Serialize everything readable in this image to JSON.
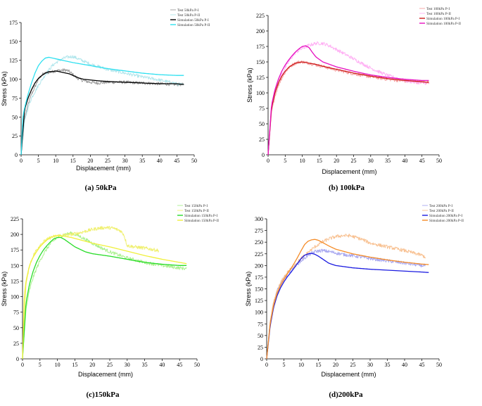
{
  "chart_data": [
    {
      "type": "line",
      "caption": "(a) 50kPa",
      "xlabel": "Displacement (mm)",
      "ylabel": "Stress (kPa)",
      "xlim": [
        0,
        50
      ],
      "ylim": [
        0,
        175
      ],
      "xticks": [
        0,
        5,
        10,
        15,
        20,
        25,
        30,
        35,
        40,
        45,
        50
      ],
      "yticks": [
        0,
        25,
        50,
        75,
        100,
        125,
        150,
        175
      ],
      "legend": "top-right",
      "series": [
        {
          "name": "Test 50kPa P-I",
          "color": "#9a9a9a",
          "style": "noisy",
          "width": 1,
          "x": [
            0,
            1,
            2,
            3,
            4,
            5,
            6,
            7,
            8,
            10,
            12,
            13,
            14,
            15,
            16,
            18,
            20,
            22,
            25,
            30,
            35,
            40,
            45,
            47
          ],
          "y": [
            0,
            48,
            66,
            80,
            90,
            100,
            106,
            108,
            109,
            111,
            112,
            112,
            110,
            106,
            102,
            98,
            96,
            95,
            96,
            96,
            95,
            94,
            93,
            93
          ]
        },
        {
          "name": "Test 50kPa P-II",
          "color": "#b0e6ec",
          "style": "noisy",
          "width": 1,
          "x": [
            0,
            1,
            2,
            3,
            5,
            7,
            9,
            11,
            13,
            15,
            17,
            20,
            25,
            30,
            35,
            40,
            45,
            47
          ],
          "y": [
            0,
            45,
            62,
            75,
            92,
            106,
            118,
            125,
            129,
            130,
            126,
            120,
            113,
            108,
            103,
            99,
            94,
            92
          ]
        },
        {
          "name": "Simulation 50kPa P-I",
          "color": "#000000",
          "style": "solid",
          "width": 1.3,
          "x": [
            0,
            1,
            2,
            3,
            4,
            5,
            6,
            7,
            8,
            9,
            10,
            11,
            12,
            13,
            14,
            15,
            16,
            17,
            18,
            20,
            22,
            25,
            30,
            35,
            40,
            45,
            47
          ],
          "y": [
            0,
            60,
            75,
            86,
            95,
            101,
            105,
            108,
            110,
            110,
            111,
            110,
            109,
            108,
            107,
            105,
            103,
            101,
            100,
            99,
            98,
            97,
            96,
            95,
            94,
            94,
            93
          ]
        },
        {
          "name": "Simulation 50kPa P-II",
          "color": "#2fe0f0",
          "style": "solid",
          "width": 1.3,
          "x": [
            0,
            0.5,
            1,
            2,
            3,
            4,
            5,
            6,
            7,
            8,
            9,
            10,
            12,
            15,
            20,
            25,
            30,
            35,
            40,
            45,
            47
          ],
          "y": [
            0,
            50,
            62,
            80,
            95,
            108,
            118,
            124,
            128,
            129,
            128,
            127,
            125,
            122,
            118,
            114,
            111,
            108,
            106,
            105,
            105
          ]
        }
      ]
    },
    {
      "type": "line",
      "caption": "(b) 100kPa",
      "xlabel": "Displacement (mm)",
      "ylabel": "Stress (kPa)",
      "xlim": [
        0,
        50
      ],
      "ylim": [
        0,
        225
      ],
      "xticks": [
        0,
        5,
        10,
        15,
        20,
        25,
        30,
        35,
        40,
        45,
        50
      ],
      "yticks": [
        0,
        25,
        50,
        75,
        100,
        125,
        150,
        175,
        200,
        225
      ],
      "legend": "top-right",
      "series": [
        {
          "name": "Test 100kPa P-I",
          "color": "#f4a0a0",
          "style": "noisy",
          "width": 1,
          "x": [
            0,
            1,
            2,
            3,
            4,
            5,
            6,
            7,
            8,
            9,
            10,
            11,
            12,
            15,
            20,
            25,
            30,
            35,
            40,
            45,
            47
          ],
          "y": [
            0,
            70,
            95,
            112,
            124,
            133,
            140,
            145,
            148,
            150,
            150,
            149,
            148,
            144,
            137,
            131,
            126,
            122,
            119,
            117,
            117
          ]
        },
        {
          "name": "Test 100kPa P-II",
          "color": "#ffb0f4",
          "style": "noisy",
          "width": 1,
          "x": [
            0,
            1,
            2,
            3,
            4,
            5,
            6,
            7,
            8,
            10,
            12,
            14,
            16,
            18,
            20,
            25,
            30,
            35,
            40,
            42,
            45,
            47
          ],
          "y": [
            0,
            75,
            100,
            118,
            130,
            140,
            150,
            158,
            165,
            172,
            177,
            180,
            180,
            176,
            170,
            155,
            140,
            128,
            120,
            118,
            116,
            116
          ]
        },
        {
          "name": "Simulation 100kPa P-I",
          "color": "#cc1a1a",
          "style": "solid",
          "width": 1.3,
          "x": [
            0,
            1,
            2,
            3,
            4,
            5,
            6,
            7,
            8,
            9,
            10,
            11,
            12,
            14,
            16,
            20,
            25,
            30,
            35,
            40,
            45,
            47
          ],
          "y": [
            0,
            75,
            100,
            116,
            127,
            135,
            141,
            145,
            148,
            149,
            150,
            149,
            148,
            146,
            143,
            138,
            132,
            127,
            123,
            120,
            118,
            117
          ]
        },
        {
          "name": "Simulation 100kPa P-II",
          "color": "#e60fc0",
          "style": "solid",
          "width": 1.3,
          "x": [
            0,
            1,
            2,
            3,
            4,
            5,
            6,
            7,
            8,
            9,
            10,
            11,
            12,
            13,
            14,
            16,
            20,
            25,
            30,
            35,
            40,
            45,
            47
          ],
          "y": [
            0,
            80,
            105,
            122,
            135,
            145,
            153,
            160,
            166,
            171,
            175,
            176,
            173,
            165,
            158,
            150,
            142,
            135,
            129,
            125,
            122,
            120,
            120
          ]
        }
      ]
    },
    {
      "type": "line",
      "caption": "(c)150kPa",
      "xlabel": "Displacement (mm)",
      "ylabel": "Stress (kPa)",
      "xlim": [
        0,
        50
      ],
      "ylim": [
        0,
        225
      ],
      "xticks": [
        0,
        5,
        10,
        15,
        20,
        25,
        30,
        35,
        40,
        45,
        50
      ],
      "yticks": [
        0,
        25,
        50,
        75,
        100,
        125,
        150,
        175,
        200,
        225
      ],
      "legend": "top-right",
      "series": [
        {
          "name": "Test 150kPa P-I",
          "color": "#a8f08c",
          "style": "noisy",
          "width": 1,
          "x": [
            0,
            1,
            2,
            3,
            4,
            5,
            6,
            7,
            8,
            10,
            12,
            14,
            16,
            18,
            20,
            22,
            25,
            30,
            35,
            40,
            45,
            47
          ],
          "y": [
            0,
            80,
            110,
            130,
            145,
            158,
            168,
            177,
            185,
            195,
            200,
            202,
            198,
            192,
            186,
            180,
            172,
            162,
            155,
            150,
            146,
            145
          ]
        },
        {
          "name": "Test 150kPa P-II",
          "color": "#f0f070",
          "style": "noisy",
          "width": 1,
          "x": [
            0,
            1,
            2,
            3,
            4,
            5,
            6,
            8,
            10,
            12,
            14,
            16,
            18,
            20,
            22,
            24,
            26,
            28,
            29,
            30,
            32,
            35,
            37,
            39
          ],
          "y": [
            0,
            120,
            150,
            165,
            175,
            183,
            188,
            195,
            198,
            199,
            200,
            202,
            205,
            208,
            210,
            211,
            210,
            206,
            200,
            182,
            180,
            178,
            176,
            174
          ]
        },
        {
          "name": "Simulation 150kPa P-I",
          "color": "#28dc28",
          "style": "solid",
          "width": 1.3,
          "x": [
            0,
            1,
            2,
            3,
            4,
            5,
            6,
            7,
            8,
            9,
            10,
            11,
            12,
            13,
            15,
            18,
            20,
            25,
            30,
            35,
            40,
            45,
            47
          ],
          "y": [
            0,
            90,
            120,
            140,
            155,
            166,
            175,
            182,
            188,
            193,
            195,
            195,
            192,
            188,
            180,
            172,
            169,
            165,
            160,
            155,
            152,
            150,
            150
          ]
        },
        {
          "name": "Simulation 150kPa P-II",
          "color": "#f0f03c",
          "style": "solid",
          "width": 1.3,
          "x": [
            0,
            0.5,
            1,
            2,
            3,
            4,
            5,
            6,
            7,
            8,
            9,
            10,
            12,
            14,
            16,
            18,
            20,
            25,
            30,
            35,
            40,
            45,
            47
          ],
          "y": [
            0,
            100,
            125,
            150,
            163,
            172,
            180,
            186,
            191,
            195,
            197,
            198,
            197,
            195,
            192,
            189,
            186,
            180,
            173,
            166,
            160,
            155,
            153
          ]
        }
      ]
    },
    {
      "type": "line",
      "caption": "(d)200kPa",
      "xlabel": "Displacement (mm)",
      "ylabel": "Stress (kPa)",
      "xlim": [
        0,
        50
      ],
      "ylim": [
        0,
        300
      ],
      "xticks": [
        0,
        5,
        10,
        15,
        20,
        25,
        30,
        35,
        40,
        45,
        50
      ],
      "yticks": [
        0,
        25,
        50,
        75,
        100,
        125,
        150,
        175,
        200,
        225,
        250,
        275,
        300
      ],
      "legend": "top-right",
      "series": [
        {
          "name": "Test 200kPa P-I",
          "color": "#a8a8f0",
          "style": "noisy",
          "width": 1,
          "x": [
            0,
            1,
            2,
            3,
            4,
            5,
            6,
            7,
            8,
            10,
            12,
            14,
            16,
            18,
            20,
            22,
            25,
            30,
            35,
            40,
            45,
            46
          ],
          "y": [
            0,
            80,
            120,
            145,
            160,
            172,
            182,
            190,
            198,
            210,
            222,
            230,
            232,
            230,
            227,
            224,
            221,
            215,
            210,
            205,
            200,
            200
          ]
        },
        {
          "name": "Test 200kPa P-II",
          "color": "#f8c090",
          "style": "noisy",
          "width": 1,
          "x": [
            0,
            1,
            2,
            3,
            4,
            5,
            6,
            8,
            10,
            12,
            14,
            16,
            18,
            20,
            22,
            24,
            26,
            28,
            30,
            35,
            40,
            45,
            46
          ],
          "y": [
            0,
            80,
            120,
            145,
            162,
            175,
            185,
            200,
            215,
            228,
            240,
            250,
            257,
            262,
            264,
            264,
            260,
            255,
            248,
            240,
            232,
            222,
            218
          ]
        },
        {
          "name": "Simulation 200kPa P-I",
          "color": "#1a1ae0",
          "style": "solid",
          "width": 1.3,
          "x": [
            0,
            1,
            2,
            3,
            4,
            5,
            6,
            7,
            8,
            9,
            10,
            11,
            12,
            13,
            14,
            15,
            16,
            17,
            18,
            20,
            25,
            30,
            35,
            40,
            45,
            47
          ],
          "y": [
            0,
            70,
            110,
            135,
            152,
            165,
            176,
            185,
            195,
            205,
            215,
            222,
            225,
            226,
            224,
            220,
            215,
            210,
            205,
            200,
            195,
            192,
            190,
            188,
            186,
            185
          ]
        },
        {
          "name": "Simulation 200kPa P-II",
          "color": "#f58c28",
          "style": "solid",
          "width": 1.3,
          "x": [
            0,
            1,
            2,
            3,
            4,
            5,
            6,
            7,
            8,
            9,
            10,
            11,
            12,
            13,
            14,
            15,
            16,
            18,
            20,
            25,
            30,
            35,
            40,
            45,
            47
          ],
          "y": [
            0,
            75,
            115,
            140,
            157,
            170,
            182,
            193,
            205,
            218,
            232,
            245,
            252,
            255,
            256,
            254,
            250,
            242,
            235,
            225,
            218,
            212,
            207,
            203,
            202
          ]
        }
      ]
    }
  ]
}
